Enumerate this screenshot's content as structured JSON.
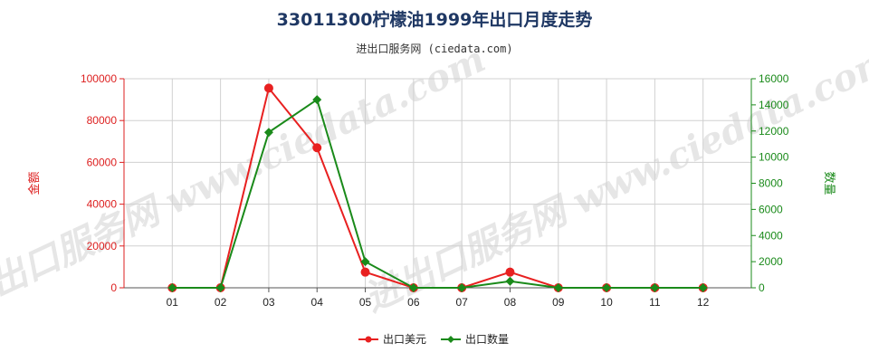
{
  "chart_data": {
    "type": "line",
    "title": "33011300柠檬油1999年出口月度走势",
    "subtitle": "进出口服务网 (ciedata.com)",
    "watermark": "进出口服务网 www.ciedata.com",
    "categories": [
      "01",
      "02",
      "03",
      "04",
      "05",
      "06",
      "07",
      "08",
      "09",
      "10",
      "11",
      "12"
    ],
    "y_left": {
      "label": "金额",
      "ylim": [
        0,
        100000
      ],
      "ticks": [
        0,
        20000,
        40000,
        60000,
        80000,
        100000
      ]
    },
    "y_right": {
      "label": "数量",
      "ylim": [
        0,
        16000
      ],
      "ticks": [
        0,
        2000,
        4000,
        6000,
        8000,
        10000,
        12000,
        14000,
        16000
      ]
    },
    "series": [
      {
        "name": "出口美元",
        "axis": "left",
        "color": "#e82020",
        "marker": "circle",
        "values": [
          0,
          0,
          95500,
          67000,
          7500,
          0,
          0,
          7500,
          0,
          0,
          0,
          0
        ]
      },
      {
        "name": "出口数量",
        "axis": "right",
        "color": "#1a8a1a",
        "marker": "diamond",
        "values": [
          0,
          0,
          11900,
          14400,
          2000,
          0,
          0,
          500,
          0,
          0,
          0,
          0
        ]
      }
    ],
    "grid": true,
    "legend_position": "bottom-center"
  }
}
